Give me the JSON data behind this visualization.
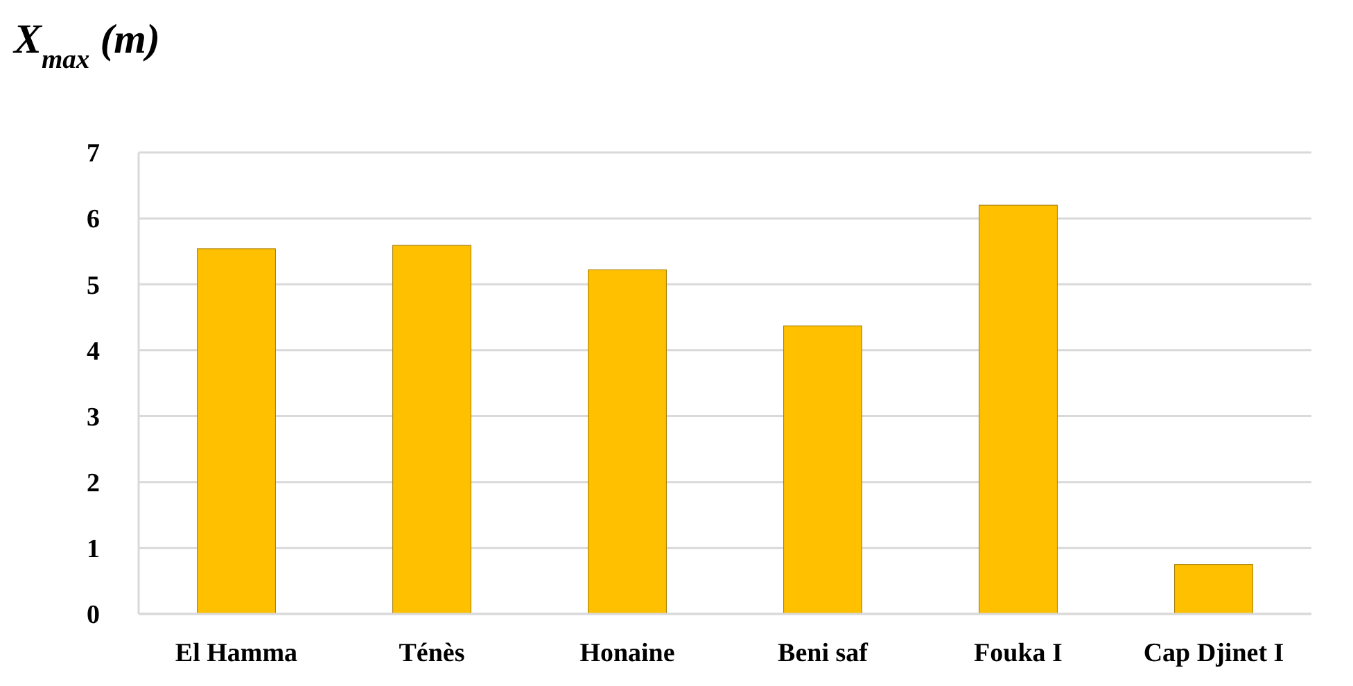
{
  "chart_data": {
    "type": "bar",
    "ylabel": "X$_{max}$ (m)",
    "categories": [
      "El Hamma",
      "Ténès",
      "Honaine",
      "Beni saf",
      "Fouka I",
      "Cap Djinet I"
    ],
    "values": [
      5.54,
      5.59,
      5.22,
      4.37,
      6.2,
      0.75
    ],
    "color": "#ffc000",
    "ylim": [
      0,
      7
    ],
    "yticks": [
      0,
      1,
      2,
      3,
      4,
      5,
      6,
      7
    ],
    "grid": "y"
  }
}
